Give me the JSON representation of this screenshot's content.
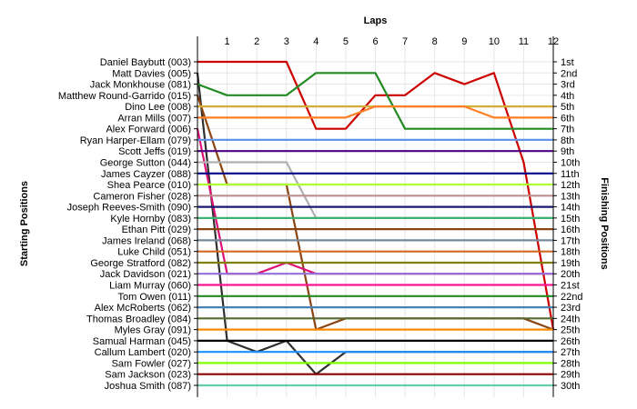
{
  "chart_data": {
    "type": "line",
    "x_title": "Laps",
    "left_title": "Starting Positions",
    "right_title": "Finishing Positions",
    "laps": [
      1,
      2,
      3,
      4,
      5,
      6,
      7,
      8,
      9,
      10,
      11,
      12
    ],
    "start_labels": [
      "Daniel Baybutt (003)",
      "Matt Davies (005)",
      "Jack Monkhouse (081)",
      "Matthew Round-Garrido (015)",
      "Dino Lee (008)",
      "Arran Mills (007)",
      "Alex Forward (006)",
      "Ryan Harper-Ellam (079)",
      "Scott Jeffs (019)",
      "George Sutton (044)",
      "James Cayzer (088)",
      "Shea Pearce (010)",
      "Cameron Fisher (028)",
      "Joseph Reeves-Smith (090)",
      "Kyle Hornby (083)",
      "Ethan Pitt (029)",
      "James Ireland (068)",
      "Luke Child (051)",
      "George Stratford (082)",
      "Jack Davidson (021)",
      "Liam Murray (060)",
      "Tom Owen (011)",
      "Alex McRoberts (062)",
      "Thomas Broadley (084)",
      "Myles Gray (091)",
      "Samual Harman (045)",
      "Callum Lambert (020)",
      "Sam Fowler (027)",
      "Sam Jackson (023)",
      "Joshua Smith (087)"
    ],
    "finish_labels": [
      "1st",
      "2nd",
      "3rd",
      "4th",
      "5th",
      "6th",
      "7th",
      "8th",
      "9th",
      "10th",
      "11th",
      "12th",
      "13th",
      "14th",
      "15th",
      "16th",
      "17th",
      "18th",
      "19th",
      "20th",
      "21st",
      "22nd",
      "23rd",
      "24th",
      "25th",
      "26th",
      "27th",
      "28th",
      "29th",
      "30th"
    ],
    "series": [
      {
        "color": "#CC0000",
        "values": [
          1,
          1,
          1,
          1,
          7,
          7,
          4,
          4,
          2,
          3,
          2,
          10,
          25
        ]
      },
      {
        "color": "#303030",
        "values": [
          2,
          26,
          27,
          26,
          29,
          27,
          27,
          27,
          27,
          27,
          27,
          27,
          27
        ]
      },
      {
        "color": "#228B22",
        "values": [
          3,
          4,
          4,
          4,
          2,
          2,
          2,
          7,
          7,
          7,
          7,
          7,
          7
        ]
      },
      {
        "color": "#8B4513",
        "values": [
          4,
          12,
          12,
          12,
          25,
          24,
          24,
          24,
          24,
          24,
          24,
          24,
          25
        ]
      },
      {
        "color": "#D4AF37",
        "values": [
          5,
          5,
          5,
          5,
          5,
          5,
          5,
          5,
          5,
          5,
          5,
          5,
          5
        ]
      },
      {
        "color": "#FF7F24",
        "values": [
          6,
          6,
          6,
          6,
          6,
          6,
          5,
          5,
          5,
          5,
          6,
          6,
          6
        ]
      },
      {
        "color": "#DD1177",
        "values": [
          7,
          20,
          20,
          19,
          20,
          20,
          20,
          20,
          20,
          20,
          20,
          20,
          20
        ]
      },
      {
        "color": "#6495ED",
        "values": [
          8,
          8,
          8,
          8,
          8,
          8,
          8,
          8,
          8,
          8,
          8,
          8,
          8
        ]
      },
      {
        "color": "#4B0082",
        "values": [
          9,
          9,
          9,
          9,
          9,
          9,
          9,
          9,
          9,
          9,
          9,
          9,
          9
        ]
      },
      {
        "color": "#B0B0B0",
        "values": [
          10,
          10,
          10,
          10,
          15,
          15,
          15,
          15,
          15,
          15,
          15,
          15,
          15
        ]
      },
      {
        "color": "#00008B",
        "values": [
          11,
          11,
          11,
          11,
          11,
          11,
          11,
          11,
          11,
          11,
          11,
          11,
          11
        ]
      },
      {
        "color": "#ADFF2F",
        "values": [
          12,
          12,
          12,
          12,
          12,
          12,
          12,
          12,
          12,
          12,
          12,
          12,
          12
        ]
      },
      {
        "color": "#BC8F8F",
        "values": [
          13,
          13,
          13,
          13,
          13,
          13,
          13,
          13,
          13,
          13,
          13,
          13,
          13
        ]
      },
      {
        "color": "#191970",
        "values": [
          14,
          14,
          14,
          14,
          14,
          14,
          14,
          14,
          14,
          14,
          14,
          14,
          14
        ]
      },
      {
        "color": "#3CB371",
        "values": [
          15,
          15,
          15,
          15,
          15,
          15,
          15,
          15,
          15,
          15,
          15,
          15,
          15
        ]
      },
      {
        "color": "#8B4513",
        "values": [
          16,
          16,
          16,
          16,
          16,
          16,
          16,
          16,
          16,
          16,
          16,
          16,
          16
        ]
      },
      {
        "color": "#778899",
        "values": [
          17,
          17,
          17,
          17,
          17,
          17,
          17,
          17,
          17,
          17,
          17,
          17,
          17
        ]
      },
      {
        "color": "#D2691E",
        "values": [
          18,
          18,
          18,
          18,
          18,
          18,
          18,
          18,
          18,
          18,
          18,
          18,
          18
        ]
      },
      {
        "color": "#808000",
        "values": [
          19,
          19,
          19,
          19,
          19,
          19,
          19,
          19,
          19,
          19,
          19,
          19,
          19
        ]
      },
      {
        "color": "#9370DB",
        "values": [
          20,
          20,
          20,
          20,
          20,
          20,
          20,
          20,
          20,
          20,
          20,
          20,
          20
        ]
      },
      {
        "color": "#FF1493",
        "values": [
          21,
          21,
          21,
          21,
          21,
          21,
          21,
          21,
          21,
          21,
          21,
          21,
          21
        ]
      },
      {
        "color": "#228B22",
        "values": [
          22,
          22,
          22,
          22,
          22,
          22,
          22,
          22,
          22,
          22,
          22,
          22,
          22
        ]
      },
      {
        "color": "#4682B4",
        "values": [
          23,
          23,
          23,
          23,
          23,
          23,
          23,
          23,
          23,
          23,
          23,
          23,
          23
        ]
      },
      {
        "color": "#556B2F",
        "values": [
          24,
          24,
          24,
          24,
          24,
          24,
          24,
          24,
          24,
          24,
          24,
          24,
          24
        ]
      },
      {
        "color": "#FF8C00",
        "values": [
          25,
          25,
          25,
          25,
          25,
          25,
          25,
          25,
          25,
          25,
          25,
          25,
          25
        ]
      },
      {
        "color": "#000000",
        "values": [
          26,
          26,
          26,
          26,
          26,
          26,
          26,
          26,
          26,
          26,
          26,
          26,
          26
        ]
      },
      {
        "color": "#1E90FF",
        "values": [
          27,
          27,
          27,
          27,
          27,
          27,
          27,
          27,
          27,
          27,
          27,
          27,
          27
        ]
      },
      {
        "color": "#7FFF00",
        "values": [
          28,
          28,
          28,
          28,
          28,
          28,
          28,
          28,
          28,
          28,
          28,
          28,
          28
        ]
      },
      {
        "color": "#8B0000",
        "values": [
          29,
          29,
          29,
          29,
          29,
          29,
          29,
          29,
          29,
          29,
          29,
          29,
          29
        ]
      },
      {
        "color": "#66CDAA",
        "values": [
          30,
          30,
          30,
          30,
          30,
          30,
          30,
          30,
          30,
          30,
          30,
          30,
          30
        ]
      }
    ]
  }
}
